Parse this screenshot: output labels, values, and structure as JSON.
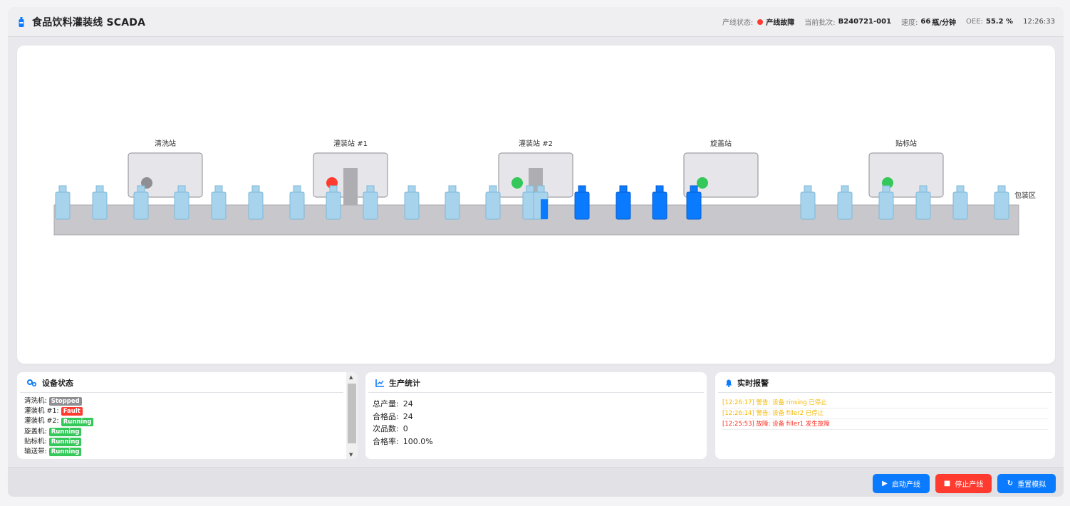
{
  "header": {
    "title": "食品饮料灌装线 SCADA",
    "line_status_label": "产线状态:",
    "line_status_value": "产线故障",
    "batch_label": "当前批次:",
    "batch_value": "B240721-001",
    "speed_label": "速度:",
    "speed_value": "66",
    "speed_unit": "瓶/分钟",
    "oee_label": "OEE:",
    "oee_value": "55.2 %",
    "clock": "12:26:33"
  },
  "line": {
    "stations": [
      {
        "label": "清洗站",
        "indicator": "stopped"
      },
      {
        "label": "灌装站 #1",
        "indicator": "fault"
      },
      {
        "label": "灌装站 #2",
        "indicator": "running"
      },
      {
        "label": "旋盖站",
        "indicator": "running"
      },
      {
        "label": "贴标站",
        "indicator": "running"
      }
    ],
    "end_label": "包装区"
  },
  "devices": {
    "title": "设备状态",
    "items": [
      {
        "label": "清洗机:",
        "status": "Stopped"
      },
      {
        "label": "灌装机 #1:",
        "status": "Fault"
      },
      {
        "label": "灌装机 #2:",
        "status": "Running"
      },
      {
        "label": "旋盖机:",
        "status": "Running"
      },
      {
        "label": "贴标机:",
        "status": "Running"
      },
      {
        "label": "输送带:",
        "status": "Running"
      }
    ]
  },
  "stats": {
    "title": "生产统计",
    "total_label": "总产量:",
    "total_value": "24",
    "good_label": "合格品:",
    "good_value": "24",
    "bad_label": "次品数:",
    "bad_value": "0",
    "rate_label": "合格率:",
    "rate_value": "100.0%"
  },
  "alarms": {
    "title": "实时报警",
    "items": [
      {
        "text": "[12:26:17] 警告: 设备 rinsing 已停止",
        "level": "warn"
      },
      {
        "text": "[12:26:14] 警告: 设备 filler2 已停止",
        "level": "warn"
      },
      {
        "text": "[12:25:53] 故障: 设备 filler1 发生故障",
        "level": "err"
      }
    ]
  },
  "controls": {
    "start": "启动产线",
    "stop": "停止产线",
    "reset": "重置模拟"
  },
  "colors": {
    "running": "#34c759",
    "fault": "#ff3b30",
    "stopped": "#8e8e93",
    "accent": "#0a7aff",
    "bottle_empty": "#a7d3ec",
    "bottle_full": "#0a7aff"
  }
}
